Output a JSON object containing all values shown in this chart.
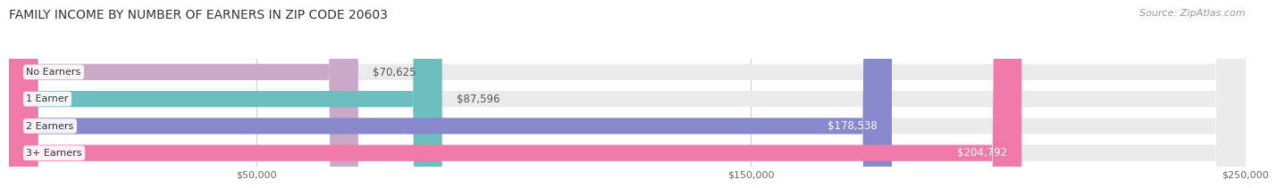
{
  "title": "FAMILY INCOME BY NUMBER OF EARNERS IN ZIP CODE 20603",
  "source": "Source: ZipAtlas.com",
  "categories": [
    "No Earners",
    "1 Earner",
    "2 Earners",
    "3+ Earners"
  ],
  "values": [
    70625,
    87596,
    178538,
    204792
  ],
  "labels": [
    "$70,625",
    "$87,596",
    "$178,538",
    "$204,792"
  ],
  "bar_colors": [
    "#c9a8c8",
    "#6dbfbf",
    "#8888cc",
    "#f07aaa"
  ],
  "label_colors": [
    "#555555",
    "#555555",
    "#ffffff",
    "#ffffff"
  ],
  "xlim": [
    0,
    250000
  ],
  "xticks": [
    50000,
    150000,
    250000
  ],
  "xticklabels": [
    "$50,000",
    "$150,000",
    "$250,000"
  ],
  "title_fontsize": 10,
  "source_fontsize": 8,
  "bar_label_fontsize": 8.5,
  "category_fontsize": 8,
  "background_color": "#ffffff",
  "bar_height": 0.6
}
